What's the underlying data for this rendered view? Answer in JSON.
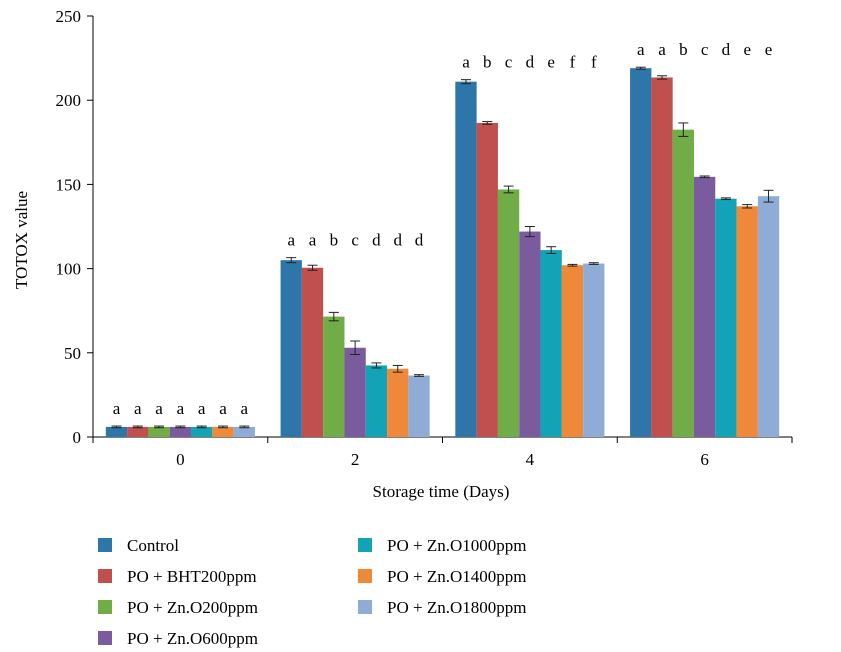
{
  "chart_data": {
    "type": "bar",
    "xlabel": "Storage time (Days)",
    "ylabel": "TOTOX value",
    "ylim": [
      0,
      250
    ],
    "yticks": [
      0,
      50,
      100,
      150,
      200,
      250
    ],
    "grid": false,
    "legend_position": "bottom",
    "categories": [
      "0",
      "2",
      "4",
      "6"
    ],
    "series": [
      {
        "name": "Control",
        "color": "#2e75a9",
        "values": [
          6,
          105,
          211,
          219
        ],
        "errors": [
          0.5,
          1.5,
          1.2,
          0.6
        ],
        "labels": [
          "a",
          "a",
          "a",
          "a"
        ]
      },
      {
        "name": "PO + BHT200ppm",
        "color": "#c0504d",
        "values": [
          6,
          100.5,
          186.5,
          213.5
        ],
        "errors": [
          0.5,
          1.5,
          0.8,
          1.0
        ],
        "labels": [
          "a",
          "a",
          "b",
          "a"
        ]
      },
      {
        "name": "PO + Zn.O200ppm",
        "color": "#70ad47",
        "values": [
          6,
          71.5,
          147,
          182.5
        ],
        "errors": [
          0.5,
          2.5,
          2.0,
          4.0
        ],
        "labels": [
          "a",
          "b",
          "c",
          "b"
        ]
      },
      {
        "name": "PO + Zn.O600ppm",
        "color": "#7a5c9e",
        "values": [
          6,
          53,
          122,
          154.5
        ],
        "errors": [
          0.5,
          4.0,
          3.0,
          0.5
        ],
        "labels": [
          "a",
          "c",
          "d",
          "c"
        ]
      },
      {
        "name": "PO + Zn.O1000ppm",
        "color": "#13a3b6",
        "values": [
          6,
          42.5,
          111,
          141.5
        ],
        "errors": [
          0.5,
          1.5,
          2.0,
          0.5
        ],
        "labels": [
          "a",
          "d",
          "e",
          "d"
        ]
      },
      {
        "name": "PO + Zn.O1400ppm",
        "color": "#f0883a",
        "values": [
          6,
          40.5,
          102,
          137
        ],
        "errors": [
          0.5,
          2.0,
          0.5,
          1.0
        ],
        "labels": [
          "a",
          "d",
          "f",
          "e"
        ]
      },
      {
        "name": "PO + Zn.O1800ppm",
        "color": "#8eacd6",
        "values": [
          6,
          36.5,
          103,
          143
        ],
        "errors": [
          0.5,
          0.5,
          0.5,
          3.5
        ],
        "labels": [
          "a",
          "d",
          "f",
          "e"
        ]
      }
    ]
  }
}
